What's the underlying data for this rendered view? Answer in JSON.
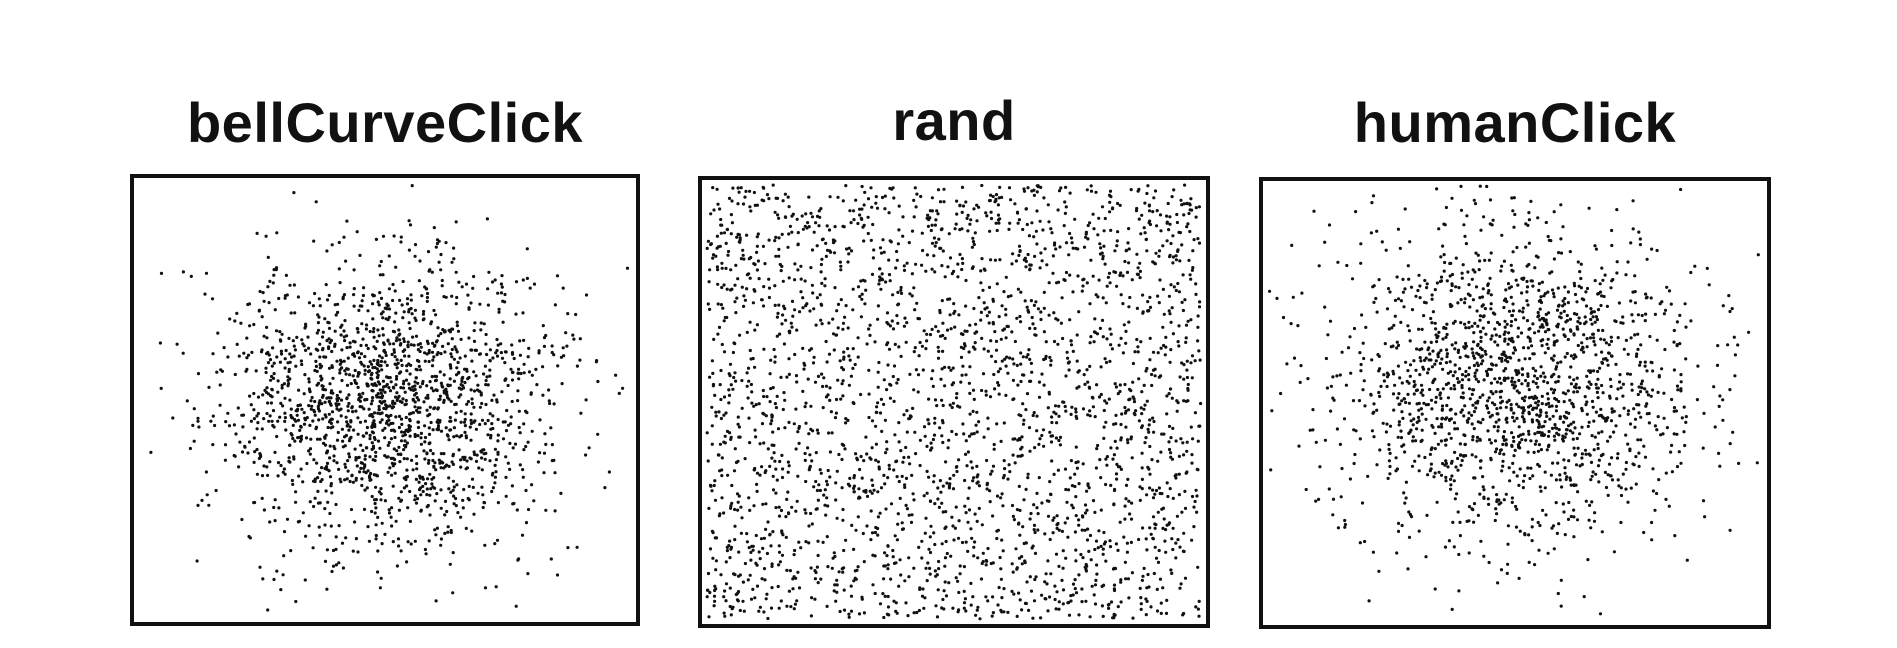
{
  "chart_data": [
    {
      "type": "scatter",
      "title": "bellCurveClick",
      "distribution": "gaussian",
      "center": [
        0.5,
        0.5
      ],
      "spread_sd": 0.17,
      "point_count": 1800,
      "xlim": [
        0,
        1
      ],
      "ylim": [
        0,
        1
      ],
      "grid": false,
      "axes_ticks": false,
      "point_color": "#111111",
      "seed": 11
    },
    {
      "type": "scatter",
      "title": "rand",
      "distribution": "uniform",
      "point_count": 2600,
      "xlim": [
        0,
        1
      ],
      "ylim": [
        0,
        1
      ],
      "grid": false,
      "axes_ticks": false,
      "point_color": "#111111",
      "seed": 23
    },
    {
      "type": "scatter",
      "title": "humanClick",
      "distribution": "gaussian",
      "center": [
        0.5,
        0.55
      ],
      "spread_sd": 0.19,
      "point_count": 1700,
      "xlim": [
        0,
        1
      ],
      "ylim": [
        0,
        1
      ],
      "grid": false,
      "axes_ticks": false,
      "point_color": "#111111",
      "seed": 37
    }
  ]
}
